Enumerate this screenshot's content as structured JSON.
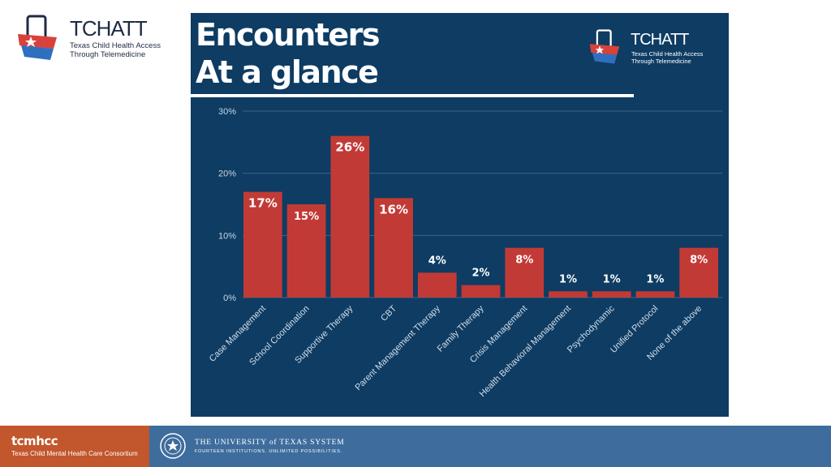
{
  "logo": {
    "name": "TCHATT",
    "subtitle_lines": [
      "Texas Child Health Access",
      "Through Telemedicine"
    ]
  },
  "panel": {
    "title_lines": [
      "Encounters",
      "At a glance"
    ],
    "bg_color": "#0e3c63"
  },
  "chart_data": {
    "type": "bar",
    "title": "Encounters At a glance",
    "categories": [
      "Case Management",
      "School Coordination",
      "Supportive Therapy",
      "CBT",
      "Parent Management Therapy",
      "Family Therapy",
      "Crisis Management",
      "Health Behavioral Management",
      "Psychodynamic",
      "Unified Protocol",
      "None of the above"
    ],
    "values": [
      17,
      15,
      26,
      16,
      4,
      2,
      8,
      1,
      1,
      1,
      8
    ],
    "data_labels": [
      "17%",
      "15%",
      "26%",
      "16%",
      "4%",
      "2%",
      "8%",
      "1%",
      "1%",
      "1%",
      "8%"
    ],
    "yticks": [
      "0%",
      "10%",
      "20%",
      "30%"
    ],
    "ylim": [
      0,
      30
    ],
    "xlabel": "",
    "ylabel": "",
    "bar_color": "#c23a36",
    "grid": true
  },
  "footer": {
    "brand": "tcmhcc",
    "brand_sub": "Texas Child Mental Health Care Consortium",
    "ut_name": "THE UNIVERSITY of TEXAS SYSTEM",
    "ut_tagline": "FOURTEEN INSTITUTIONS. UNLIMITED POSSIBILITIES."
  }
}
